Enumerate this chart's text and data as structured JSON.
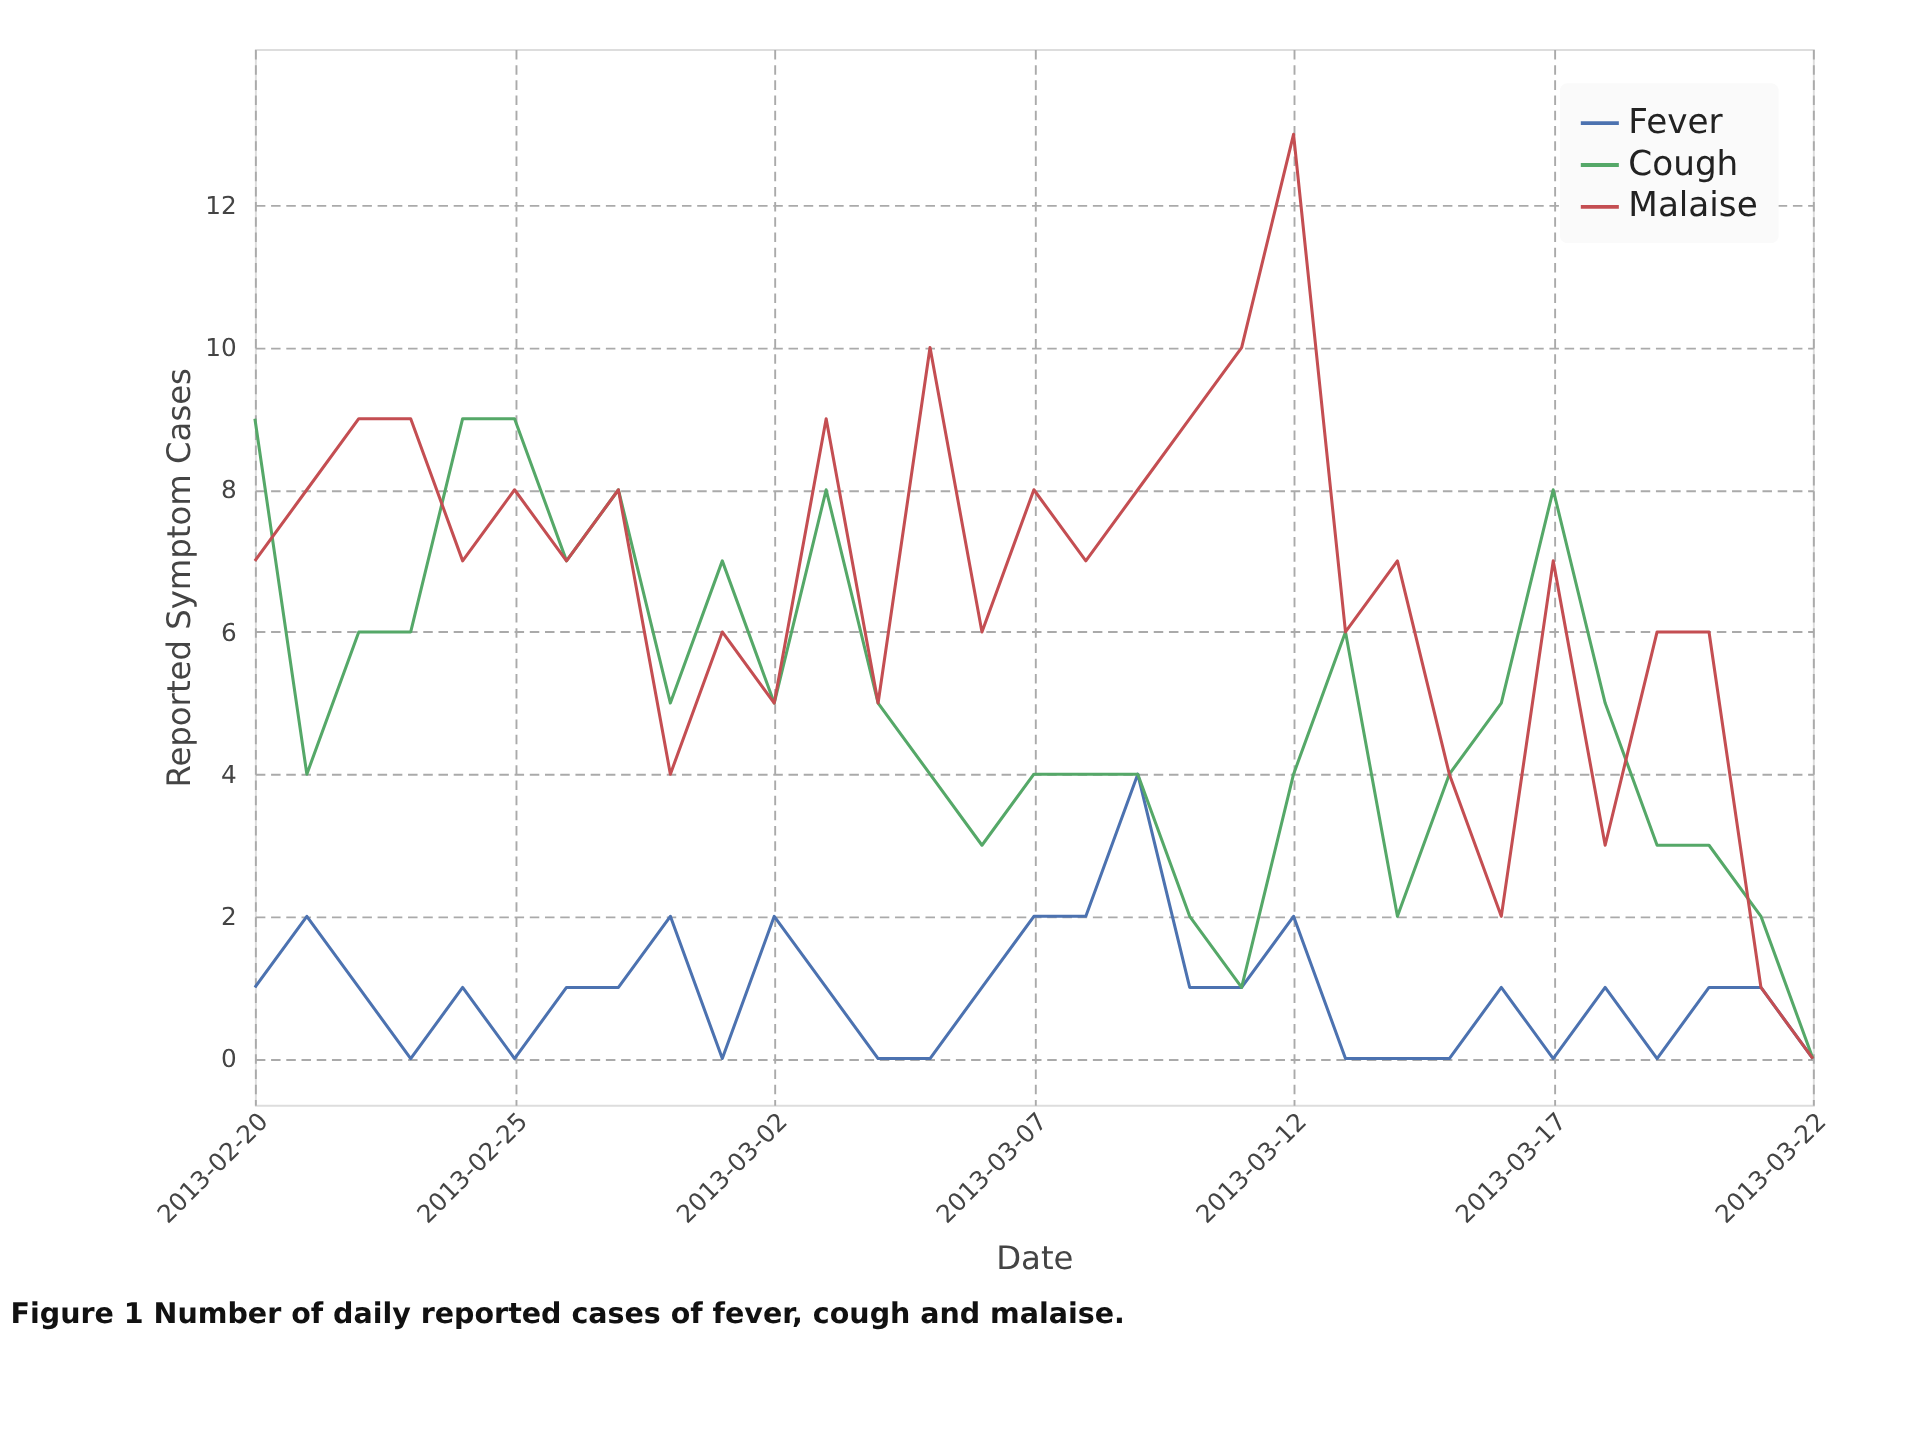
{
  "chart_data": {
    "type": "line",
    "title": "Figure 1   Number of daily reported cases of fever, cough and malaise.",
    "xlabel": "Date",
    "ylabel": "Reported Symptom Cases",
    "x": [
      "2013-02-20",
      "2013-02-21",
      "2013-02-22",
      "2013-02-23",
      "2013-02-24",
      "2013-02-25",
      "2013-02-26",
      "2013-02-27",
      "2013-02-28",
      "2013-03-01",
      "2013-03-02",
      "2013-03-03",
      "2013-03-04",
      "2013-03-05",
      "2013-03-06",
      "2013-03-07",
      "2013-03-08",
      "2013-03-09",
      "2013-03-10",
      "2013-03-11",
      "2013-03-12",
      "2013-03-13",
      "2013-03-14",
      "2013-03-15",
      "2013-03-16",
      "2013-03-17",
      "2013-03-18",
      "2013-03-19",
      "2013-03-20",
      "2013-03-21",
      "2013-03-22"
    ],
    "series": [
      {
        "name": "Fever",
        "color": "#4c72b0",
        "values": [
          1,
          2,
          1,
          0,
          1,
          0,
          1,
          1,
          2,
          0,
          2,
          1,
          0,
          0,
          1,
          2,
          2,
          4,
          1,
          1,
          2,
          0,
          0,
          0,
          1,
          0,
          1,
          0,
          1,
          1,
          0
        ]
      },
      {
        "name": "Cough",
        "color": "#55a868",
        "values": [
          9,
          4,
          6,
          6,
          9,
          9,
          7,
          8,
          5,
          7,
          5,
          8,
          5,
          4,
          3,
          4,
          4,
          4,
          2,
          1,
          4,
          6,
          2,
          4,
          5,
          8,
          5,
          3,
          3,
          2,
          0
        ]
      },
      {
        "name": "Malaise",
        "color": "#c44e52",
        "values": [
          7,
          8,
          9,
          9,
          7,
          8,
          7,
          8,
          4,
          6,
          5,
          9,
          5,
          10,
          6,
          8,
          7,
          8,
          9,
          10,
          13,
          6,
          7,
          4,
          2,
          7,
          3,
          6,
          6,
          1,
          0
        ]
      }
    ],
    "xlim": [
      "2013-02-20",
      "2013-03-22"
    ],
    "xticks": [
      "2013-02-20",
      "2013-02-25",
      "2013-03-02",
      "2013-03-07",
      "2013-03-12",
      "2013-03-17",
      "2013-03-22"
    ],
    "ylim": [
      -0.65,
      14.2
    ],
    "yticks": [
      0,
      2,
      4,
      6,
      8,
      10,
      12
    ],
    "grid": true,
    "legend": "top right",
    "marker": "none",
    "line_style": "solid"
  }
}
